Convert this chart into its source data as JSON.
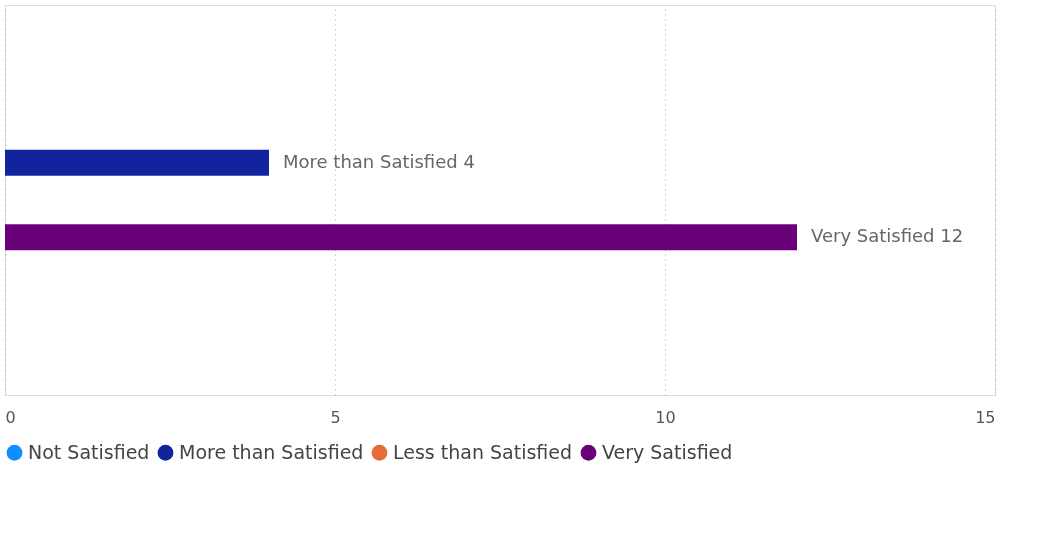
{
  "chart_data": {
    "type": "bar",
    "orientation": "horizontal",
    "categories": [
      null
    ],
    "series": [
      {
        "name": "Not Satisfied",
        "color": "#118dff",
        "values": [
          null
        ],
        "value_labels": [
          null
        ]
      },
      {
        "name": "More than Satisfied",
        "color": "#12239e",
        "values": [
          4
        ],
        "value_labels": [
          "More than Satisfied 4"
        ]
      },
      {
        "name": "Less than Satisfied",
        "color": "#e66c37",
        "values": [
          null
        ],
        "value_labels": [
          null
        ]
      },
      {
        "name": "Very Satisfied",
        "color": "#6b007b",
        "values": [
          12
        ],
        "value_labels": [
          "Very Satisfied 12"
        ]
      }
    ],
    "xlim": [
      0,
      15
    ],
    "xticks": [
      0,
      5,
      10,
      15
    ],
    "grid": "x",
    "legend": "bottom",
    "tick_labels": "x"
  }
}
